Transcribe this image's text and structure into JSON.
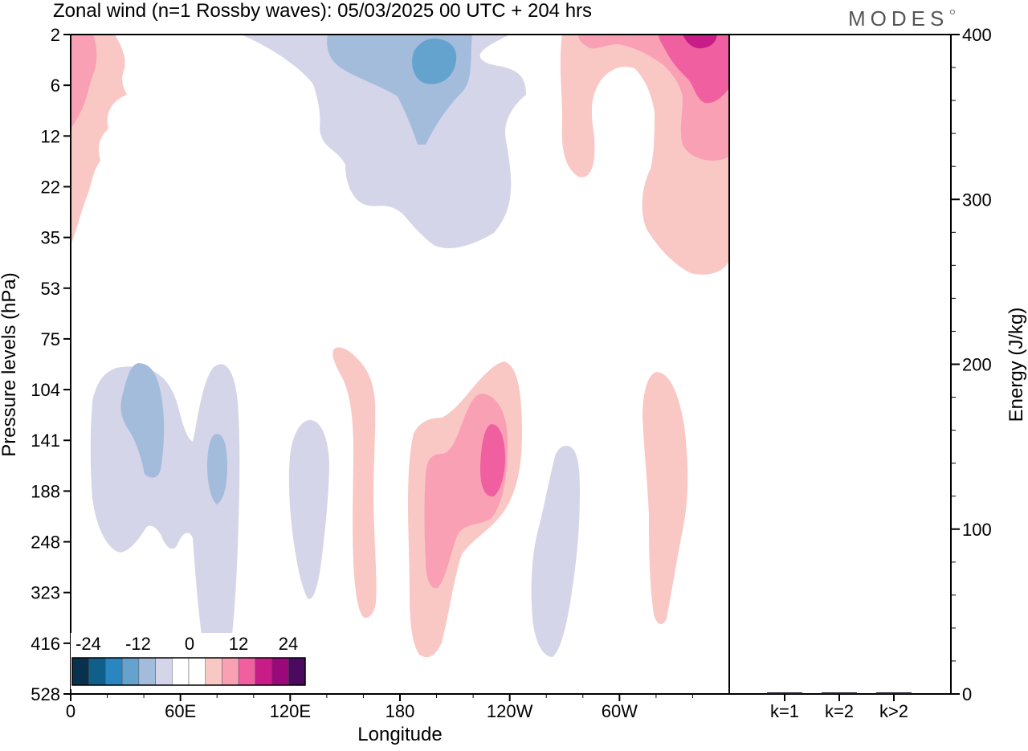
{
  "title": "Zonal wind (n=1 Rossby waves):  05/03/2025  00 UTC  + 204 hrs",
  "logo": "MODES",
  "chart_data": [
    {
      "type": "heatmap",
      "title": "Zonal wind (n=1 Rossby waves):  05/03/2025  00 UTC  + 204 hrs",
      "xlabel": "Longitude",
      "ylabel": "Pressure levels (hPa)",
      "x_ticks": [
        {
          "label": "0",
          "lon": 0
        },
        {
          "label": "60E",
          "lon": 60
        },
        {
          "label": "120E",
          "lon": 120
        },
        {
          "label": "180",
          "lon": 180
        },
        {
          "label": "120W",
          "lon": 240
        },
        {
          "label": "60W",
          "lon": 300
        }
      ],
      "xlim": [
        0,
        360
      ],
      "y_levels": [
        "2",
        "6",
        "12",
        "22",
        "35",
        "53",
        "75",
        "104",
        "141",
        "188",
        "248",
        "323",
        "416",
        "528"
      ],
      "y_axis_direction": "pressure decreasing upward",
      "colorbar": {
        "tick_labels": [
          "-24",
          "-12",
          "0",
          "12",
          "24"
        ],
        "colors": [
          "#08314d",
          "#0f5f8a",
          "#2a86c0",
          "#65a3cf",
          "#a4bcdc",
          "#d4d5e8",
          "#ffffff",
          "#ffffff",
          "#f9c8c4",
          "#f9a0b5",
          "#f060a0",
          "#c81c88",
          "#9a087a",
          "#4a0a60"
        ]
      },
      "regions": [
        {
          "sign": "positive",
          "level": 1,
          "lon": [
            0,
            15
          ],
          "levels": [
            "2",
            "35"
          ]
        },
        {
          "sign": "positive",
          "level": 2,
          "lon": [
            0,
            7
          ],
          "levels": [
            "2",
            "12"
          ]
        },
        {
          "sign": "positive",
          "level": 1,
          "lon": [
            265,
            360
          ],
          "levels": [
            "2",
            "53"
          ]
        },
        {
          "sign": "positive",
          "level": 2,
          "lon": [
            300,
            360
          ],
          "levels": [
            "2",
            "22"
          ]
        },
        {
          "sign": "positive",
          "level": 3,
          "lon": [
            320,
            360
          ],
          "levels": [
            "2",
            "6"
          ]
        },
        {
          "sign": "positive",
          "level": 4,
          "lon": [
            332,
            352
          ],
          "levels": [
            "2",
            "2"
          ]
        },
        {
          "sign": "negative",
          "level": 1,
          "lon": [
            90,
            250
          ],
          "levels": [
            "2",
            "35"
          ]
        },
        {
          "sign": "negative",
          "level": 2,
          "lon": [
            140,
            215
          ],
          "levels": [
            "2",
            "12"
          ]
        },
        {
          "sign": "negative",
          "level": 3,
          "lon": [
            180,
            210
          ],
          "levels": [
            "2",
            "6"
          ]
        },
        {
          "sign": "negative",
          "level": 1,
          "lon": [
            10,
            90
          ],
          "levels": [
            "104",
            "528"
          ]
        },
        {
          "sign": "negative",
          "level": 2,
          "lon": [
            28,
            50
          ],
          "levels": [
            "104",
            "188"
          ]
        },
        {
          "sign": "negative",
          "level": 2,
          "lon": [
            75,
            83
          ],
          "levels": [
            "104",
            "188"
          ]
        },
        {
          "sign": "negative",
          "level": 1,
          "lon": [
            120,
            140
          ],
          "levels": [
            "141",
            "323"
          ]
        },
        {
          "sign": "negative",
          "level": 1,
          "lon": [
            253,
            278
          ],
          "levels": [
            "141",
            "416"
          ]
        },
        {
          "sign": "positive",
          "level": 1,
          "lon": [
            135,
            165
          ],
          "levels": [
            "75",
            "323"
          ]
        },
        {
          "sign": "positive",
          "level": 1,
          "lon": [
            185,
            255
          ],
          "levels": [
            "104",
            "416"
          ]
        },
        {
          "sign": "positive",
          "level": 2,
          "lon": [
            192,
            240
          ],
          "levels": [
            "104",
            "323"
          ]
        },
        {
          "sign": "positive",
          "level": 3,
          "lon": [
            226,
            238
          ],
          "levels": [
            "141",
            "188"
          ]
        },
        {
          "sign": "positive",
          "level": 1,
          "lon": [
            312,
            335
          ],
          "levels": [
            "104",
            "323"
          ]
        }
      ]
    },
    {
      "type": "bar",
      "ylabel": "Energy (J/kg)",
      "categories": [
        "k=1",
        "k=2",
        "k>2"
      ],
      "values": [
        0.5,
        0.3,
        0.4
      ],
      "ylim": [
        0,
        400
      ],
      "y_ticks": [
        "0",
        "100",
        "200",
        "300",
        "400"
      ]
    }
  ]
}
